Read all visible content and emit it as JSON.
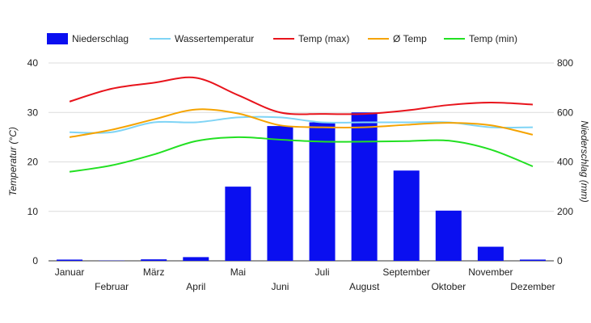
{
  "chart_data": {
    "type": "bar",
    "categories": [
      "Januar",
      "Februar",
      "März",
      "April",
      "Mai",
      "Juni",
      "Juli",
      "August",
      "September",
      "Oktober",
      "November",
      "Dezember"
    ],
    "bar_series": {
      "name": "Niederschlag",
      "axis": "right",
      "color": "#0a0ff0",
      "values": [
        5,
        1,
        6,
        15,
        300,
        545,
        560,
        600,
        365,
        203,
        57,
        5
      ]
    },
    "line_series": [
      {
        "name": "Wassertemperatur",
        "axis": "left",
        "color": "#7fd4f5",
        "values": [
          26,
          26,
          28,
          28,
          29,
          29,
          28,
          28,
          28,
          28,
          27,
          27
        ]
      },
      {
        "name": "Temp (max)",
        "axis": "left",
        "color": "#e8141c",
        "values": [
          32.2,
          34.8,
          36,
          37,
          33.5,
          30,
          29.7,
          29.7,
          30.4,
          31.5,
          32,
          31.6
        ]
      },
      {
        "name": "Ø Temp",
        "axis": "left",
        "color": "#f5a300",
        "values": [
          25,
          26.5,
          28.6,
          30.6,
          29.8,
          27.4,
          27,
          27,
          27.5,
          27.9,
          27.4,
          25.5
        ]
      },
      {
        "name": "Temp (min)",
        "axis": "left",
        "color": "#22e022",
        "values": [
          18,
          19.3,
          21.5,
          24.2,
          25,
          24.5,
          24.1,
          24.1,
          24.2,
          24.3,
          22.5,
          19.1
        ]
      }
    ],
    "legend_order": [
      "Niederschlag",
      "Wassertemperatur",
      "Temp (max)",
      "Ø Temp",
      "Temp (min)"
    ],
    "legend_position": "top-left",
    "ylabel_left": "Temperatur (°C)",
    "ylabel_right": "Niederschlag (mm)",
    "ylim_left": [
      0,
      40
    ],
    "ylim_right": [
      0,
      800
    ],
    "yticks_left": [
      "0",
      "10",
      "20",
      "30",
      "40"
    ],
    "yticks_right": [
      "0",
      "200",
      "400",
      "600",
      "800"
    ],
    "grid": true
  }
}
